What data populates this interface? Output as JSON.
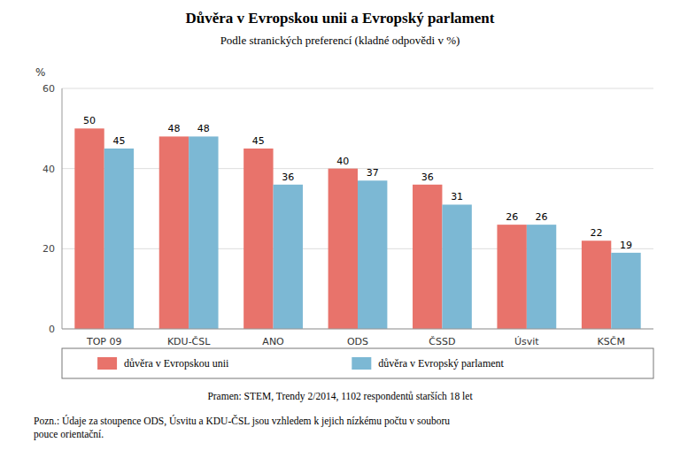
{
  "chart_data": {
    "type": "bar",
    "title": "Důvěra v Evropskou unii a Evropský parlament",
    "subtitle": "Podle stranických preferencí (kladné odpovědi v %)",
    "ylabel": "%",
    "categories": [
      "TOP 09",
      "KDU-ČSL",
      "ANO",
      "ODS",
      "ČSSD",
      "Úsvit",
      "KSČM"
    ],
    "series": [
      {
        "name": "důvěra v Evropskou unii",
        "color": "#E8736B",
        "values": [
          50,
          48,
          45,
          40,
          36,
          26,
          22
        ]
      },
      {
        "name": "důvěra v Evropský parlament",
        "color": "#7CB8D4",
        "values": [
          45,
          48,
          36,
          37,
          31,
          26,
          19
        ]
      }
    ],
    "ylim": [
      0,
      60
    ],
    "yticks": [
      0,
      20,
      40,
      60
    ],
    "grid": true,
    "data_labels": true,
    "legend": "bottom",
    "annotations": [
      "Pramen: STEM, Trendy 2/2014, 1102 respondentů starších 18 let",
      "Pozn.: Údaje za stoupence ODS, Úsvitu a KDU-ČSL jsou vzhledem k jejich nízkému počtu v souboru\npouce orientační."
    ]
  }
}
